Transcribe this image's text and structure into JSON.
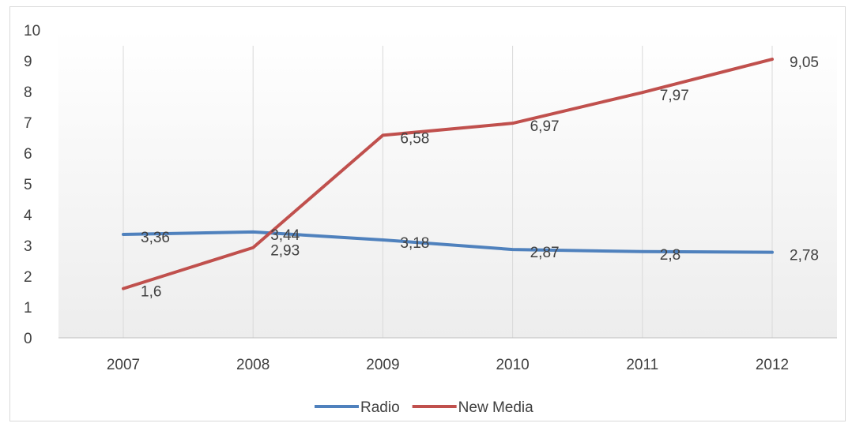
{
  "chart_data": {
    "type": "line",
    "categories": [
      "2007",
      "2008",
      "2009",
      "2010",
      "2011",
      "2012"
    ],
    "series": [
      {
        "name": "Radio",
        "values": [
          3.36,
          3.44,
          3.18,
          2.87,
          2.8,
          2.78
        ],
        "labels": [
          "3,36",
          "3,44",
          "3,18",
          "2,87",
          "2,8",
          "2,78"
        ],
        "color": "#4F81BD"
      },
      {
        "name": "New Media",
        "values": [
          1.6,
          2.93,
          6.58,
          6.97,
          7.97,
          9.05
        ],
        "labels": [
          "1,6",
          "2,93",
          "6,58",
          "6,97",
          "7,97",
          "9,05"
        ],
        "color": "#C0504D"
      }
    ],
    "ylim": [
      0,
      10
    ],
    "yticks": [
      "0",
      "1",
      "2",
      "3",
      "4",
      "5",
      "6",
      "7",
      "8",
      "9",
      "10"
    ],
    "grid": "vertical",
    "legend_position": "bottom",
    "title": "",
    "xlabel": "",
    "ylabel": ""
  }
}
